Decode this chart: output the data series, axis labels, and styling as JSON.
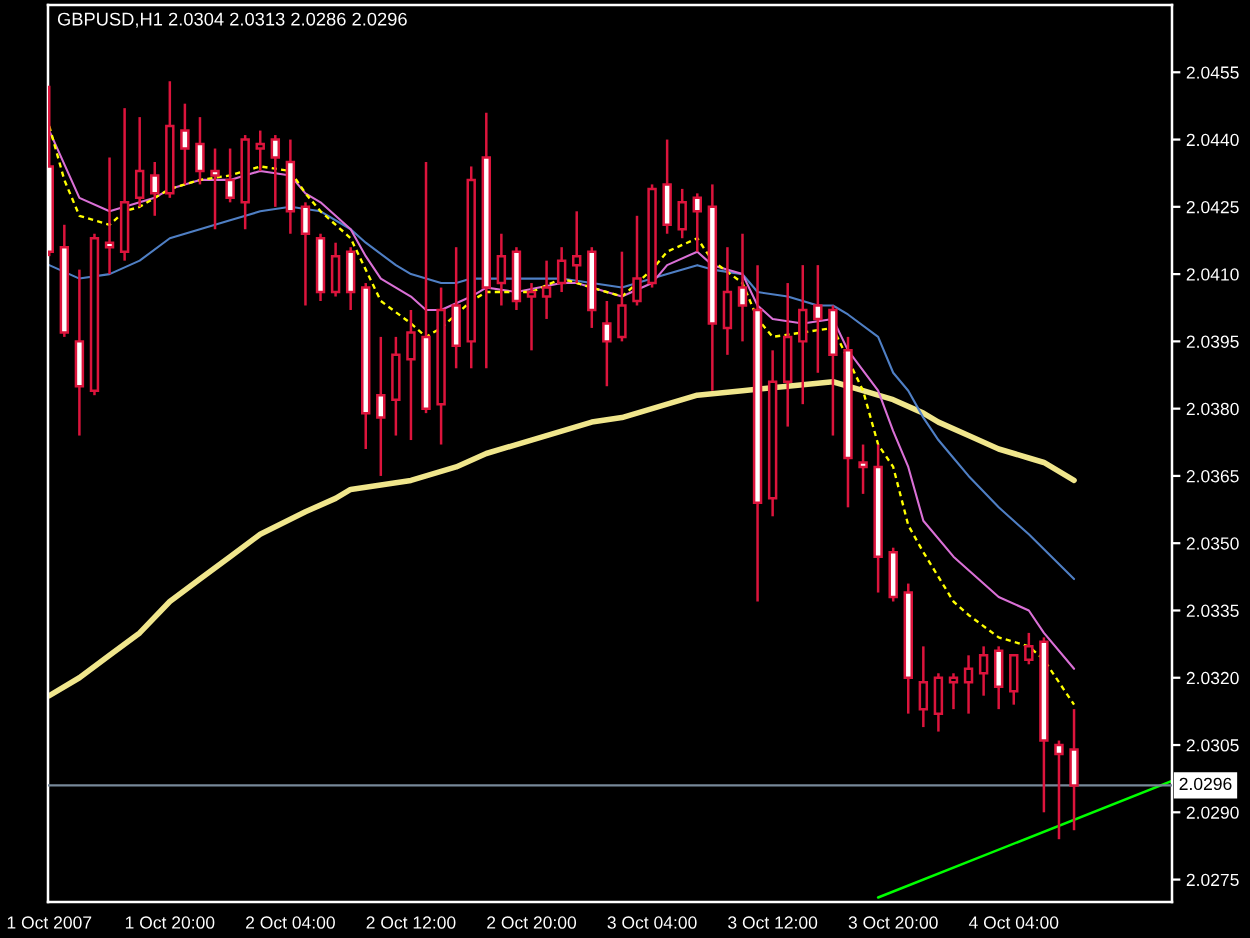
{
  "chart_data": {
    "type": "candlestick",
    "title": "GBPUSD,H1 2.0304 2.0313 2.0286 2.0296",
    "x": [
      "2007-10-01T12:00",
      "2007-10-01T13:00",
      "2007-10-01T14:00",
      "2007-10-01T15:00",
      "2007-10-01T16:00",
      "2007-10-01T17:00",
      "2007-10-01T18:00",
      "2007-10-01T19:00",
      "2007-10-01T20:00",
      "2007-10-01T21:00",
      "2007-10-01T22:00",
      "2007-10-01T23:00",
      "2007-10-02T00:00",
      "2007-10-02T01:00",
      "2007-10-02T02:00",
      "2007-10-02T03:00",
      "2007-10-02T04:00",
      "2007-10-02T05:00",
      "2007-10-02T06:00",
      "2007-10-02T07:00",
      "2007-10-02T08:00",
      "2007-10-02T09:00",
      "2007-10-02T10:00",
      "2007-10-02T11:00",
      "2007-10-02T12:00",
      "2007-10-02T13:00",
      "2007-10-02T14:00",
      "2007-10-02T15:00",
      "2007-10-02T16:00",
      "2007-10-02T17:00",
      "2007-10-02T18:00",
      "2007-10-02T19:00",
      "2007-10-02T20:00",
      "2007-10-02T21:00",
      "2007-10-02T22:00",
      "2007-10-02T23:00",
      "2007-10-03T00:00",
      "2007-10-03T01:00",
      "2007-10-03T02:00",
      "2007-10-03T03:00",
      "2007-10-03T04:00",
      "2007-10-03T05:00",
      "2007-10-03T06:00",
      "2007-10-03T07:00",
      "2007-10-03T08:00",
      "2007-10-03T09:00",
      "2007-10-03T10:00",
      "2007-10-03T11:00",
      "2007-10-03T12:00",
      "2007-10-03T13:00",
      "2007-10-03T14:00",
      "2007-10-03T15:00",
      "2007-10-03T16:00",
      "2007-10-03T17:00",
      "2007-10-03T18:00",
      "2007-10-03T19:00",
      "2007-10-03T20:00",
      "2007-10-03T21:00",
      "2007-10-03T22:00",
      "2007-10-03T23:00",
      "2007-10-04T00:00",
      "2007-10-04T01:00",
      "2007-10-04T02:00",
      "2007-10-04T03:00",
      "2007-10-04T04:00",
      "2007-10-04T05:00",
      "2007-10-04T06:00",
      "2007-10-04T07:00",
      "2007-10-04T08:00"
    ],
    "ohlc": [
      [
        2.0434,
        2.0452,
        2.0414,
        2.0415
      ],
      [
        2.0416,
        2.0421,
        2.0396,
        2.0397
      ],
      [
        2.0395,
        2.0411,
        2.0374,
        2.0385
      ],
      [
        2.0384,
        2.0419,
        2.0383,
        2.0418
      ],
      [
        2.0417,
        2.0436,
        2.041,
        2.0416
      ],
      [
        2.0415,
        2.0447,
        2.0413,
        2.0426
      ],
      [
        2.0427,
        2.0445,
        2.0425,
        2.0433
      ],
      [
        2.0432,
        2.0435,
        2.0423,
        2.0428
      ],
      [
        2.0428,
        2.0453,
        2.0427,
        2.0443
      ],
      [
        2.0442,
        2.0448,
        2.043,
        2.0438
      ],
      [
        2.0439,
        2.0445,
        2.043,
        2.0433
      ],
      [
        2.0433,
        2.0438,
        2.042,
        2.0432
      ],
      [
        2.0431,
        2.0438,
        2.0426,
        2.0427
      ],
      [
        2.0426,
        2.0441,
        2.042,
        2.044
      ],
      [
        2.0438,
        2.0442,
        2.0433,
        2.0439
      ],
      [
        2.044,
        2.0441,
        2.0425,
        2.0436
      ],
      [
        2.0435,
        2.044,
        2.0419,
        2.0424
      ],
      [
        2.0425,
        2.0426,
        2.0403,
        2.0419
      ],
      [
        2.0418,
        2.0419,
        2.0404,
        2.0406
      ],
      [
        2.0406,
        2.0417,
        2.0405,
        2.0414
      ],
      [
        2.0415,
        2.0416,
        2.0402,
        2.0406
      ],
      [
        2.0407,
        2.0408,
        2.0371,
        2.0379
      ],
      [
        2.0383,
        2.0396,
        2.0365,
        2.0378
      ],
      [
        2.0382,
        2.0396,
        2.0374,
        2.0392
      ],
      [
        2.0391,
        2.0402,
        2.0373,
        2.0397
      ],
      [
        2.0396,
        2.0435,
        2.0379,
        2.038
      ],
      [
        2.0381,
        2.0407,
        2.0372,
        2.0402
      ],
      [
        2.0403,
        2.0416,
        2.0389,
        2.0394
      ],
      [
        2.0395,
        2.0434,
        2.0389,
        2.0431
      ],
      [
        2.0436,
        2.0446,
        2.0389,
        2.0407
      ],
      [
        2.0408,
        2.0419,
        2.0403,
        2.0414
      ],
      [
        2.0415,
        2.0416,
        2.0402,
        2.0404
      ],
      [
        2.0405,
        2.0408,
        2.0393,
        2.0406
      ],
      [
        2.0405,
        2.0413,
        2.04,
        2.0407
      ],
      [
        2.0408,
        2.0416,
        2.0406,
        2.0413
      ],
      [
        2.0412,
        2.0424,
        2.0408,
        2.0414
      ],
      [
        2.0415,
        2.0416,
        2.0398,
        2.0402
      ],
      [
        2.0399,
        2.0404,
        2.0385,
        2.0395
      ],
      [
        2.0396,
        2.0415,
        2.0395,
        2.0403
      ],
      [
        2.0404,
        2.0423,
        2.0403,
        2.0409
      ],
      [
        2.0408,
        2.043,
        2.0407,
        2.0429
      ],
      [
        2.043,
        2.044,
        2.0419,
        2.0421
      ],
      [
        2.042,
        2.0429,
        2.0418,
        2.0426
      ],
      [
        2.0427,
        2.0428,
        2.0415,
        2.0424
      ],
      [
        2.0425,
        2.043,
        2.0384,
        2.0399
      ],
      [
        2.0398,
        2.0416,
        2.0392,
        2.0406
      ],
      [
        2.0407,
        2.0419,
        2.0395,
        2.0403
      ],
      [
        2.0402,
        2.0412,
        2.0337,
        2.0359
      ],
      [
        2.036,
        2.0393,
        2.0356,
        2.0386
      ],
      [
        2.0386,
        2.0408,
        2.0376,
        2.0396
      ],
      [
        2.0395,
        2.0412,
        2.0381,
        2.0402
      ],
      [
        2.0403,
        2.0412,
        2.0388,
        2.04
      ],
      [
        2.0402,
        2.0403,
        2.0374,
        2.0392
      ],
      [
        2.0393,
        2.0396,
        2.0358,
        2.0369
      ],
      [
        2.0368,
        2.0372,
        2.0361,
        2.0367
      ],
      [
        2.0367,
        2.0372,
        2.0339,
        2.0347
      ],
      [
        2.0348,
        2.0349,
        2.0337,
        2.0338
      ],
      [
        2.0339,
        2.0341,
        2.0312,
        2.032
      ],
      [
        2.0313,
        2.0327,
        2.0309,
        2.0319
      ],
      [
        2.0312,
        2.0321,
        2.0308,
        2.032
      ],
      [
        2.0319,
        2.0321,
        2.0313,
        2.032
      ],
      [
        2.0319,
        2.0325,
        2.0312,
        2.0322
      ],
      [
        2.0321,
        2.0327,
        2.0316,
        2.0325
      ],
      [
        2.0326,
        2.0327,
        2.0313,
        2.0318
      ],
      [
        2.0317,
        2.0325,
        2.0314,
        2.0325
      ],
      [
        2.0324,
        2.033,
        2.0323,
        2.0327
      ],
      [
        2.0328,
        2.0329,
        2.029,
        2.0306
      ],
      [
        2.0305,
        2.0306,
        2.0284,
        2.0303
      ],
      [
        2.0304,
        2.0313,
        2.0286,
        2.0296
      ]
    ],
    "color": "#dc143c",
    "colors": [
      "#ffffff",
      "#ffffff",
      "#ffffff",
      "#000000",
      "#ffffff",
      "#000000",
      "#000000",
      "#ffffff",
      "#000000",
      "#ffffff",
      "#ffffff",
      "#ffffff",
      "#ffffff",
      "#000000",
      "#000000",
      "#ffffff",
      "#ffffff",
      "#ffffff",
      "#ffffff",
      "#000000",
      "#ffffff",
      "#ffffff",
      "#ffffff",
      "#000000",
      "#000000",
      "#ffffff",
      "#000000",
      "#ffffff",
      "#000000",
      "#ffffff",
      "#000000",
      "#ffffff",
      "#000000",
      "#000000",
      "#000000",
      "#000000",
      "#ffffff",
      "#ffffff",
      "#000000",
      "#000000",
      "#000000",
      "#ffffff",
      "#000000",
      "#ffffff",
      "#ffffff",
      "#000000",
      "#ffffff",
      "#ffffff",
      "#000000",
      "#000000",
      "#000000",
      "#ffffff",
      "#ffffff",
      "#ffffff",
      "#ffffff",
      "#ffffff",
      "#ffffff",
      "#ffffff",
      "#000000",
      "#000000",
      "#000000",
      "#000000",
      "#000000",
      "#ffffff",
      "#000000",
      "#000000",
      "#ffffff",
      "#ffffff",
      "#ffffff"
    ],
    "series": [
      {
        "type": "line",
        "color": "#f0e68c",
        "line_style": "solid",
        "x": [
          "2007-10-01T12:00",
          "2007-10-01T14:00",
          "2007-10-01T16:00",
          "2007-10-01T18:00",
          "2007-10-01T20:00",
          "2007-10-01T22:00",
          "2007-10-02T00:00",
          "2007-10-02T02:00",
          "2007-10-02T05:00",
          "2007-10-02T07:00",
          "2007-10-02T08:00",
          "2007-10-02T10:00",
          "2007-10-02T12:00",
          "2007-10-02T13:00",
          "2007-10-02T15:00",
          "2007-10-02T17:00",
          "2007-10-02T20:00",
          "2007-10-02T22:00",
          "2007-10-03T00:00",
          "2007-10-03T02:00",
          "2007-10-03T04:00",
          "2007-10-03T06:00",
          "2007-10-03T07:00",
          "2007-10-03T10:00",
          "2007-10-03T13:00",
          "2007-10-03T16:00",
          "2007-10-03T18:00",
          "2007-10-03T20:00",
          "2007-10-03T22:00",
          "2007-10-03T23:00",
          "2007-10-04T01:00",
          "2007-10-04T03:00",
          "2007-10-04T05:00",
          "2007-10-04T06:00",
          "2007-10-04T08:00"
        ],
        "values": [
          2.0316,
          2.032,
          2.0325,
          2.033,
          2.0337,
          2.0342,
          2.0347,
          2.0352,
          2.0357,
          2.036,
          2.0362,
          2.0363,
          2.0364,
          2.0365,
          2.0367,
          2.037,
          2.0373,
          2.0375,
          2.0377,
          2.0378,
          2.038,
          2.0382,
          2.0383,
          2.0384,
          2.0385,
          2.0386,
          2.0384,
          2.0382,
          2.0379,
          2.0377,
          2.0374,
          2.0371,
          2.0369,
          2.0368,
          2.0364
        ]
      },
      {
        "type": "line",
        "color": "#4f7fc4",
        "line_style": "solid",
        "x": [
          "2007-10-01T12:00",
          "2007-10-01T14:00",
          "2007-10-01T16:00",
          "2007-10-01T18:00",
          "2007-10-01T20:00",
          "2007-10-01T22:00",
          "2007-10-02T00:00",
          "2007-10-02T02:00",
          "2007-10-02T04:00",
          "2007-10-02T06:00",
          "2007-10-02T08:00",
          "2007-10-02T09:00",
          "2007-10-02T11:00",
          "2007-10-02T12:00",
          "2007-10-02T14:00",
          "2007-10-02T15:00",
          "2007-10-02T16:00",
          "2007-10-02T18:00",
          "2007-10-02T20:00",
          "2007-10-02T22:00",
          "2007-10-03T00:00",
          "2007-10-03T02:00",
          "2007-10-03T03:00",
          "2007-10-03T05:00",
          "2007-10-03T07:00",
          "2007-10-03T08:00",
          "2007-10-03T10:00",
          "2007-10-03T11:00",
          "2007-10-03T13:00",
          "2007-10-03T15:00",
          "2007-10-03T16:00",
          "2007-10-03T17:00",
          "2007-10-03T19:00",
          "2007-10-03T20:00",
          "2007-10-03T21:00",
          "2007-10-03T22:00",
          "2007-10-03T23:00",
          "2007-10-04T00:00",
          "2007-10-04T01:00",
          "2007-10-04T03:00",
          "2007-10-04T05:00",
          "2007-10-04T08:00"
        ],
        "values": [
          2.0412,
          2.0409,
          2.041,
          2.0413,
          2.0418,
          2.042,
          2.0422,
          2.0424,
          2.0425,
          2.0424,
          2.042,
          2.0417,
          2.0412,
          2.041,
          2.0408,
          2.0408,
          2.0409,
          2.0409,
          2.0409,
          2.0409,
          2.0408,
          2.0407,
          2.0408,
          2.041,
          2.0412,
          2.0411,
          2.041,
          2.0406,
          2.0405,
          2.0403,
          2.0403,
          2.0401,
          2.0396,
          2.0388,
          2.0384,
          2.0378,
          2.0373,
          2.0369,
          2.0365,
          2.0358,
          2.0352,
          2.0342
        ]
      },
      {
        "type": "line",
        "color": "#da70d6",
        "line_style": "solid",
        "x": [
          "2007-10-01T12:00",
          "2007-10-01T14:00",
          "2007-10-01T16:00",
          "2007-10-01T17:00",
          "2007-10-01T19:00",
          "2007-10-01T20:00",
          "2007-10-01T22:00",
          "2007-10-02T00:00",
          "2007-10-02T02:00",
          "2007-10-02T04:00",
          "2007-10-02T05:00",
          "2007-10-02T06:00",
          "2007-10-02T08:00",
          "2007-10-02T09:00",
          "2007-10-02T10:00",
          "2007-10-02T12:00",
          "2007-10-02T13:00",
          "2007-10-02T14:00",
          "2007-10-02T16:00",
          "2007-10-02T17:00",
          "2007-10-02T19:00",
          "2007-10-02T22:00",
          "2007-10-02T23:00",
          "2007-10-03T01:00",
          "2007-10-03T02:00",
          "2007-10-03T04:00",
          "2007-10-03T05:00",
          "2007-10-03T07:00",
          "2007-10-03T08:00",
          "2007-10-03T10:00",
          "2007-10-03T11:00",
          "2007-10-03T12:00",
          "2007-10-03T14:00",
          "2007-10-03T16:00",
          "2007-10-03T17:00",
          "2007-10-03T19:00",
          "2007-10-03T20:00",
          "2007-10-03T21:00",
          "2007-10-03T22:00",
          "2007-10-04T00:00",
          "2007-10-04T03:00",
          "2007-10-04T05:00",
          "2007-10-04T06:00",
          "2007-10-04T08:00"
        ],
        "values": [
          2.0442,
          2.0427,
          2.0424,
          2.0425,
          2.0427,
          2.0429,
          2.0431,
          2.0431,
          2.0433,
          2.0432,
          2.0428,
          2.0426,
          2.042,
          2.0414,
          2.0409,
          2.0405,
          2.0402,
          2.0402,
          2.0405,
          2.0407,
          2.0406,
          2.0408,
          2.0408,
          2.0406,
          2.0405,
          2.0408,
          2.0412,
          2.0415,
          2.0412,
          2.041,
          2.0403,
          2.04,
          2.0399,
          2.04,
          2.0393,
          2.0384,
          2.0375,
          2.0367,
          2.0355,
          2.0347,
          2.0338,
          2.0335,
          2.033,
          2.0322
        ]
      },
      {
        "type": "line",
        "color": "#ffff00",
        "line_style": "dashed",
        "x": [
          "2007-10-01T12:00",
          "2007-10-01T13:00",
          "2007-10-01T14:00",
          "2007-10-01T16:00",
          "2007-10-01T17:00",
          "2007-10-01T18:00",
          "2007-10-01T20:00",
          "2007-10-01T22:00",
          "2007-10-02T00:00",
          "2007-10-02T02:00",
          "2007-10-02T04:00",
          "2007-10-02T05:00",
          "2007-10-02T06:00",
          "2007-10-02T08:00",
          "2007-10-02T09:00",
          "2007-10-02T10:00",
          "2007-10-02T12:00",
          "2007-10-02T13:00",
          "2007-10-02T14:00",
          "2007-10-02T16:00",
          "2007-10-02T17:00",
          "2007-10-02T20:00",
          "2007-10-02T22:00",
          "2007-10-03T00:00",
          "2007-10-03T02:00",
          "2007-10-03T04:00",
          "2007-10-03T05:00",
          "2007-10-03T07:00",
          "2007-10-03T08:00",
          "2007-10-03T10:00",
          "2007-10-03T11:00",
          "2007-10-03T12:00",
          "2007-10-03T14:00",
          "2007-10-03T16:00",
          "2007-10-03T18:00",
          "2007-10-03T19:00",
          "2007-10-03T20:00",
          "2007-10-03T21:00",
          "2007-10-03T22:00",
          "2007-10-04T00:00",
          "2007-10-04T01:00",
          "2007-10-04T03:00",
          "2007-10-04T05:00",
          "2007-10-04T06:00",
          "2007-10-04T07:00",
          "2007-10-04T08:00"
        ],
        "values": [
          2.0443,
          2.0431,
          2.0423,
          2.0421,
          2.0424,
          2.0425,
          2.0429,
          2.0431,
          2.0432,
          2.0434,
          2.0433,
          2.0428,
          2.0424,
          2.0418,
          2.0411,
          2.0404,
          2.0399,
          2.0396,
          2.0398,
          2.0404,
          2.0406,
          2.0406,
          2.0409,
          2.0407,
          2.0405,
          2.0411,
          2.0415,
          2.0418,
          2.0413,
          2.0408,
          2.04,
          2.0396,
          2.0397,
          2.0398,
          2.0384,
          2.0372,
          2.0367,
          2.0354,
          2.0348,
          2.0337,
          2.0334,
          2.0329,
          2.0327,
          2.0324,
          2.0319,
          2.0314
        ]
      },
      {
        "type": "line",
        "color": "#00ff00",
        "line_style": "solid",
        "x": [
          "2007-10-03T19:00",
          "2007-10-04T14:30"
        ],
        "values": [
          2.0271,
          2.0297
        ]
      }
    ],
    "ref_lines": [
      {
        "axis": "y",
        "value": 2.0296,
        "label": "2.0296",
        "color": "#778899"
      }
    ],
    "xlim": [
      "2007-10-01T11:55",
      "2007-10-04T14:30"
    ],
    "xticks": [
      {
        "value": "2007-10-01T12:00",
        "label": "1 Oct 2007"
      },
      {
        "value": "2007-10-01T20:00",
        "label": "1 Oct 20:00"
      },
      {
        "value": "2007-10-02T04:00",
        "label": "2 Oct 04:00"
      },
      {
        "value": "2007-10-02T12:00",
        "label": "2 Oct 12:00"
      },
      {
        "value": "2007-10-02T20:00",
        "label": "2 Oct 20:00"
      },
      {
        "value": "2007-10-03T04:00",
        "label": "3 Oct 04:00"
      },
      {
        "value": "2007-10-03T12:00",
        "label": "3 Oct 12:00"
      },
      {
        "value": "2007-10-03T20:00",
        "label": "3 Oct 20:00"
      },
      {
        "value": "2007-10-04T04:00",
        "label": "4 Oct 04:00"
      }
    ],
    "ylim": [
      2.027,
      2.047
    ],
    "yticks": [
      2.0275,
      {
        "value": 2.029,
        "label": "2.0290"
      },
      2.0305,
      {
        "value": 2.032,
        "label": "2.0320"
      },
      2.0335,
      {
        "value": 2.035,
        "label": "2.0350"
      },
      2.0365,
      {
        "value": 2.038,
        "label": "2.0380"
      },
      2.0395,
      {
        "value": 2.041,
        "label": "2.0410"
      },
      2.0425,
      {
        "value": 2.044,
        "label": "2.0440"
      },
      2.0455
    ]
  }
}
